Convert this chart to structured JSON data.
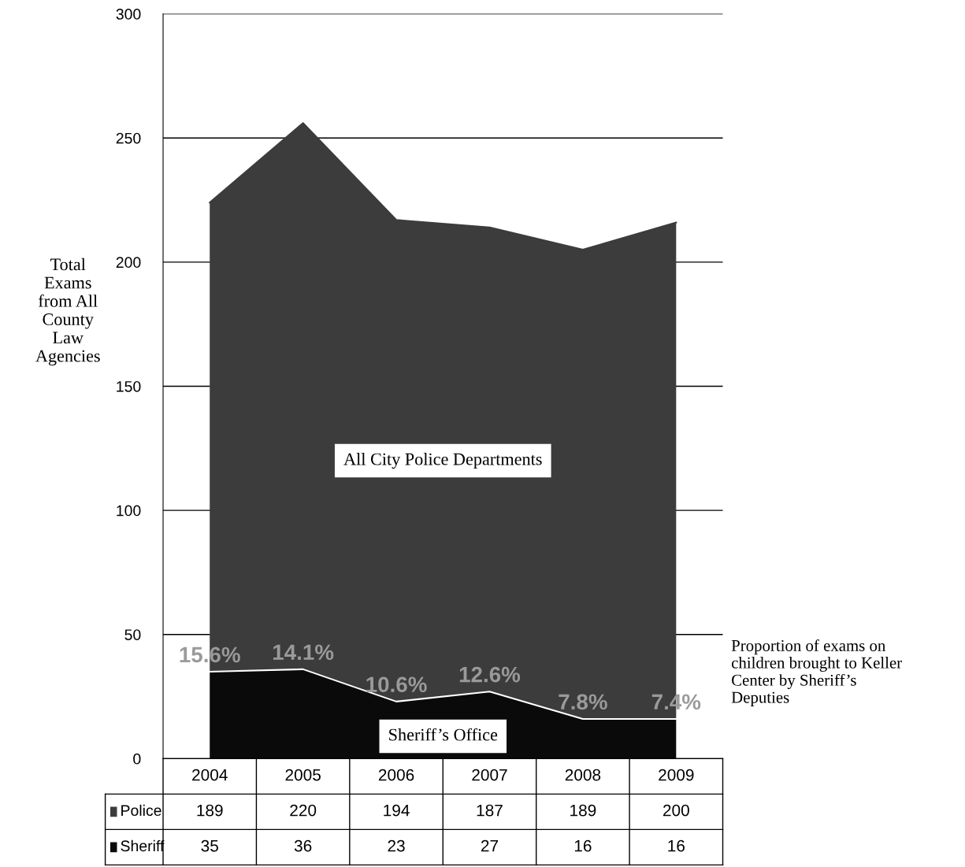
{
  "chart_data": {
    "type": "area",
    "stacked": true,
    "ylabel": "Total\nExams\nfrom All\nCounty\nLaw\nAgencies",
    "categories": [
      "2004",
      "2005",
      "2006",
      "2007",
      "2008",
      "2009"
    ],
    "series": [
      {
        "name": "Sheriff",
        "color": "#0a0a0a",
        "values": [
          35,
          36,
          23,
          27,
          16,
          16
        ]
      },
      {
        "name": "Police",
        "color": "#3c3c3c",
        "values": [
          189,
          220,
          194,
          187,
          189,
          200
        ]
      }
    ],
    "ylim": [
      0,
      300
    ],
    "yticks": [
      0,
      50,
      100,
      150,
      200,
      250,
      300
    ],
    "grid": "y",
    "data_labels": true,
    "legend": "bottom left",
    "annotations": [
      "All City Police Departments",
      "Sheriff’s Office",
      {
        "text": "15.6%",
        "x": "2004",
        "y": 35
      },
      {
        "text": "14.1%",
        "x": "2005",
        "y": 36
      },
      {
        "text": "10.6%",
        "x": "2006",
        "y": 23
      },
      {
        "text": "12.6%",
        "x": "2007",
        "y": 27
      },
      {
        "text": "7.8%",
        "x": "2008",
        "y": 16
      },
      {
        "text": "7.4%",
        "x": "2009",
        "y": 16
      },
      "Proportion of exams on\nchildren brought to Keller\nCenter by Sheriff’s\nDeputies"
    ]
  }
}
